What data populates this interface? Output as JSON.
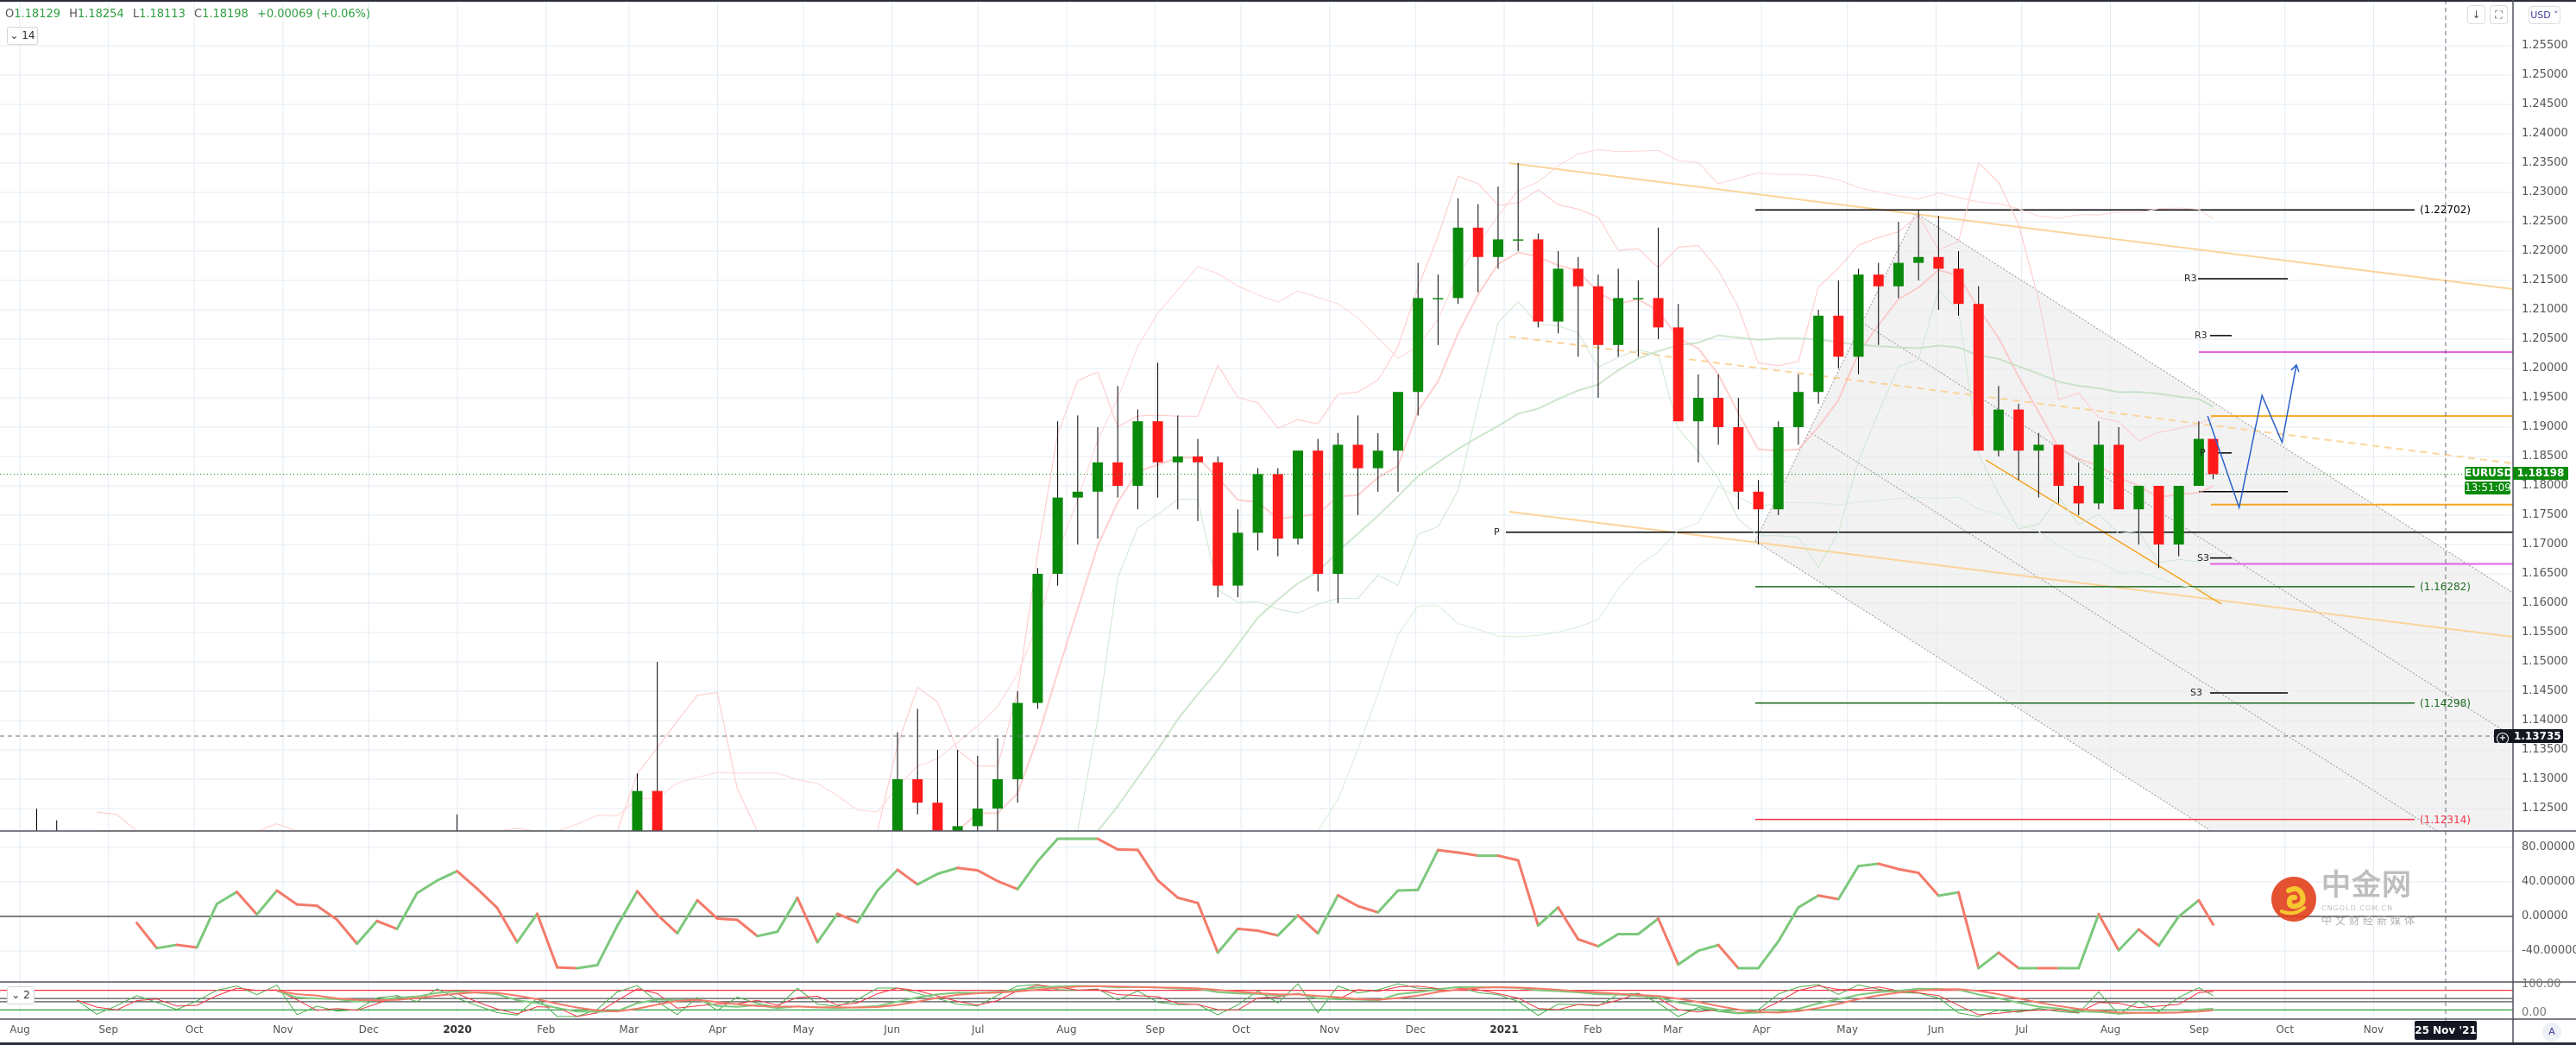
{
  "header": {
    "open_label": "O",
    "open": "1.18129",
    "high_label": "H",
    "high": "1.18254",
    "low_label": "L",
    "low": "1.18113",
    "close_label": "C",
    "close": "1.18198",
    "change": "+0.00069 (+0.06%)"
  },
  "pane_controls": {
    "main_collapse": "14",
    "lower_collapse": "2"
  },
  "toolbar": {
    "currency": "USD",
    "scroll_icon": "arrow-down-icon",
    "fullscreen_icon": "fullscreen-icon",
    "auto_scale": "A"
  },
  "price_axis": {
    "ticks": [
      "1.25500",
      "1.25000",
      "1.24500",
      "1.24000",
      "1.23500",
      "1.23000",
      "1.22500",
      "1.22000",
      "1.21500",
      "1.21000",
      "1.20500",
      "1.20000",
      "1.19500",
      "1.19000",
      "1.18500",
      "1.18000",
      "1.17500",
      "1.17000",
      "1.16500",
      "1.16000",
      "1.15500",
      "1.15000",
      "1.14500",
      "1.14000",
      "1.13500",
      "1.13000",
      "1.12500"
    ]
  },
  "symbol_label": "EURUSD",
  "last_price": "1.18198",
  "countdown": "13:51:09",
  "crosshair": {
    "price": "1.13735",
    "date": "25 Nov '21"
  },
  "rsi_axis": [
    "80.00000",
    "40.00000",
    "0.00000",
    "-40.00000"
  ],
  "stoch_axis": [
    "100.00",
    "0.00"
  ],
  "time_axis": [
    {
      "label": "Aug",
      "date": "2019-08-01"
    },
    {
      "label": "Sep",
      "date": "2019-09-01"
    },
    {
      "label": "Oct",
      "date": "2019-10-01"
    },
    {
      "label": "Nov",
      "date": "2019-11-01"
    },
    {
      "label": "Dec",
      "date": "2019-12-01"
    },
    {
      "label": "2020",
      "date": "2020-01-01"
    },
    {
      "label": "Feb",
      "date": "2020-02-01"
    },
    {
      "label": "Mar",
      "date": "2020-03-01"
    },
    {
      "label": "Apr",
      "date": "2020-04-01"
    },
    {
      "label": "May",
      "date": "2020-05-01"
    },
    {
      "label": "Jun",
      "date": "2020-06-01"
    },
    {
      "label": "Jul",
      "date": "2020-07-01"
    },
    {
      "label": "Aug",
      "date": "2020-08-01"
    },
    {
      "label": "Sep",
      "date": "2020-09-01"
    },
    {
      "label": "Oct",
      "date": "2020-10-01"
    },
    {
      "label": "Nov",
      "date": "2020-11-01"
    },
    {
      "label": "Dec",
      "date": "2020-12-01"
    },
    {
      "label": "2021",
      "date": "2021-01-01"
    },
    {
      "label": "Feb",
      "date": "2021-02-01"
    },
    {
      "label": "Mar",
      "date": "2021-03-01"
    },
    {
      "label": "Apr",
      "date": "2021-04-01"
    },
    {
      "label": "May",
      "date": "2021-05-01"
    },
    {
      "label": "Jun",
      "date": "2021-06-01"
    },
    {
      "label": "Jul",
      "date": "2021-07-01"
    },
    {
      "label": "Aug",
      "date": "2021-08-01"
    },
    {
      "label": "Sep",
      "date": "2021-09-01"
    },
    {
      "label": "Oct",
      "date": "2021-10-01"
    },
    {
      "label": "Nov",
      "date": "2021-11-01"
    }
  ],
  "levels": [
    {
      "label": "(1.22702)",
      "price": 1.22702,
      "color": "#000000"
    },
    {
      "label": "(1.16282)",
      "price": 1.16282,
      "color": "#1e6b1e"
    },
    {
      "label": "(1.14298)",
      "price": 1.14298,
      "color": "#1e6b1e"
    },
    {
      "label": "(1.12314)",
      "price": 1.12314,
      "color": "#f23645"
    }
  ],
  "pivots": [
    {
      "label": "R3",
      "price": 1.2153
    },
    {
      "label": "R3",
      "price": 1.2056
    },
    {
      "label": "P",
      "price": 1.1856
    },
    {
      "label": "P",
      "price": 1.1721
    },
    {
      "label": "S3",
      "price": 1.1677
    },
    {
      "label": "S3",
      "price": 1.1447
    }
  ],
  "colors": {
    "up": "#0a8a0a",
    "down": "#ff1a1a",
    "magenta": "#e060e0",
    "orange": "#f5a623",
    "projection": "#2a62c8",
    "grid": "#e3ebf3"
  },
  "watermark": {
    "brand": "中金网",
    "url": "CNGOLD.COM.CN",
    "tagline": "中文财经新媒体"
  },
  "chart_data": {
    "type": "candlestick",
    "symbol": "EURUSD",
    "ylim": [
      1.121,
      1.261
    ],
    "ohlc_weekly": [
      [
        "2019-08-02",
        1.108,
        1.112,
        1.103,
        1.111
      ],
      [
        "2019-08-09",
        1.111,
        1.125,
        1.108,
        1.12
      ],
      [
        "2019-08-16",
        1.12,
        1.123,
        1.108,
        1.109
      ],
      [
        "2019-08-23",
        1.109,
        1.115,
        1.105,
        1.114
      ],
      [
        "2019-08-30",
        1.114,
        1.114,
        1.097,
        1.099
      ],
      [
        "2019-09-06",
        1.099,
        1.108,
        1.093,
        1.103
      ],
      [
        "2019-09-13",
        1.103,
        1.109,
        1.093,
        1.107
      ],
      [
        "2019-09-20",
        1.107,
        1.108,
        1.098,
        1.102
      ],
      [
        "2019-09-27",
        1.102,
        1.102,
        1.09,
        1.094
      ],
      [
        "2019-10-04",
        1.094,
        1.1,
        1.088,
        1.098
      ],
      [
        "2019-10-11",
        1.098,
        1.105,
        1.094,
        1.104
      ],
      [
        "2019-10-18",
        1.104,
        1.117,
        1.102,
        1.115
      ],
      [
        "2019-10-25",
        1.115,
        1.118,
        1.107,
        1.108
      ],
      [
        "2019-11-01",
        1.108,
        1.117,
        1.107,
        1.117
      ],
      [
        "2019-11-08",
        1.117,
        1.117,
        1.101,
        1.102
      ],
      [
        "2019-11-15",
        1.102,
        1.106,
        1.099,
        1.105
      ],
      [
        "2019-11-22",
        1.105,
        1.109,
        1.099,
        1.102
      ],
      [
        "2019-11-29",
        1.102,
        1.103,
        1.098,
        1.102
      ],
      [
        "2019-12-06",
        1.102,
        1.112,
        1.101,
        1.106
      ],
      [
        "2019-12-13",
        1.106,
        1.12,
        1.106,
        1.112
      ],
      [
        "2019-12-20",
        1.112,
        1.115,
        1.106,
        1.108
      ],
      [
        "2019-12-27",
        1.108,
        1.118,
        1.107,
        1.117
      ],
      [
        "2020-01-03",
        1.117,
        1.124,
        1.115,
        1.116
      ],
      [
        "2020-01-10",
        1.116,
        1.117,
        1.108,
        1.112
      ],
      [
        "2020-01-17",
        1.112,
        1.117,
        1.107,
        1.109
      ],
      [
        "2020-01-24",
        1.109,
        1.11,
        1.102,
        1.103
      ],
      [
        "2020-01-31",
        1.103,
        1.11,
        1.099,
        1.109
      ],
      [
        "2020-02-07",
        1.109,
        1.11,
        1.094,
        1.094
      ],
      [
        "2020-02-14",
        1.094,
        1.097,
        1.083,
        1.083
      ],
      [
        "2020-02-21",
        1.083,
        1.085,
        1.078,
        1.085
      ],
      [
        "2020-02-28",
        1.085,
        1.103,
        1.082,
        1.102
      ],
      [
        "2020-03-06",
        1.102,
        1.131,
        1.101,
        1.128
      ],
      [
        "2020-03-13",
        1.128,
        1.15,
        1.105,
        1.111
      ],
      [
        "2020-03-20",
        1.111,
        1.115,
        1.064,
        1.069
      ],
      [
        "2020-03-27",
        1.069,
        1.115,
        1.07,
        1.114
      ],
      [
        "2020-04-03",
        1.103,
        1.104,
        1.077,
        1.08
      ],
      [
        "2020-04-10",
        1.08,
        1.097,
        1.077,
        1.094
      ],
      [
        "2020-04-17",
        1.094,
        1.099,
        1.081,
        1.088
      ],
      [
        "2020-04-24",
        1.088,
        1.09,
        1.073,
        1.082
      ],
      [
        "2020-05-01",
        1.082,
        1.102,
        1.081,
        1.098
      ],
      [
        "2020-05-08",
        1.098,
        1.098,
        1.077,
        1.084
      ],
      [
        "2020-05-15",
        1.084,
        1.09,
        1.077,
        1.082
      ],
      [
        "2020-05-22",
        1.082,
        1.101,
        1.088,
        1.09
      ],
      [
        "2020-05-29",
        1.09,
        1.115,
        1.089,
        1.11
      ],
      [
        "2020-06-05",
        1.11,
        1.138,
        1.11,
        1.13
      ],
      [
        "2020-06-12",
        1.13,
        1.142,
        1.124,
        1.126
      ],
      [
        "2020-06-19",
        1.126,
        1.135,
        1.117,
        1.118
      ],
      [
        "2020-06-26",
        1.118,
        1.135,
        1.117,
        1.122
      ],
      [
        "2020-07-03",
        1.122,
        1.134,
        1.118,
        1.125
      ],
      [
        "2020-07-10",
        1.125,
        1.137,
        1.119,
        1.13
      ],
      [
        "2020-07-17",
        1.13,
        1.145,
        1.126,
        1.143
      ],
      [
        "2020-07-24",
        1.143,
        1.166,
        1.142,
        1.165
      ],
      [
        "2020-07-31",
        1.165,
        1.191,
        1.163,
        1.178
      ],
      [
        "2020-08-07",
        1.178,
        1.192,
        1.17,
        1.179
      ],
      [
        "2020-08-14",
        1.179,
        1.19,
        1.171,
        1.184
      ],
      [
        "2020-08-21",
        1.184,
        1.197,
        1.178,
        1.18
      ],
      [
        "2020-08-28",
        1.18,
        1.193,
        1.176,
        1.191
      ],
      [
        "2020-09-04",
        1.191,
        1.201,
        1.178,
        1.184
      ],
      [
        "2020-09-11",
        1.184,
        1.192,
        1.176,
        1.185
      ],
      [
        "2020-09-18",
        1.185,
        1.188,
        1.174,
        1.184
      ],
      [
        "2020-09-25",
        1.184,
        1.185,
        1.161,
        1.163
      ],
      [
        "2020-10-02",
        1.163,
        1.176,
        1.161,
        1.172
      ],
      [
        "2020-10-09",
        1.172,
        1.183,
        1.169,
        1.182
      ],
      [
        "2020-10-16",
        1.182,
        1.183,
        1.168,
        1.171
      ],
      [
        "2020-10-23",
        1.171,
        1.186,
        1.17,
        1.186
      ],
      [
        "2020-10-30",
        1.186,
        1.188,
        1.162,
        1.165
      ],
      [
        "2020-11-06",
        1.165,
        1.189,
        1.16,
        1.187
      ],
      [
        "2020-11-13",
        1.187,
        1.192,
        1.175,
        1.183
      ],
      [
        "2020-11-20",
        1.183,
        1.189,
        1.179,
        1.186
      ],
      [
        "2020-11-27",
        1.186,
        1.196,
        1.179,
        1.196
      ],
      [
        "2020-12-04",
        1.196,
        1.218,
        1.192,
        1.212
      ],
      [
        "2020-12-11",
        1.212,
        1.216,
        1.204,
        1.212
      ],
      [
        "2020-12-18",
        1.212,
        1.229,
        1.211,
        1.224
      ],
      [
        "2020-12-25",
        1.224,
        1.228,
        1.213,
        1.219
      ],
      [
        "2021-01-01",
        1.219,
        1.231,
        1.217,
        1.222
      ],
      [
        "2021-01-08",
        1.222,
        1.235,
        1.22,
        1.222
      ],
      [
        "2021-01-15",
        1.222,
        1.223,
        1.207,
        1.208
      ],
      [
        "2021-01-22",
        1.208,
        1.22,
        1.206,
        1.217
      ],
      [
        "2021-01-29",
        1.217,
        1.219,
        1.202,
        1.214
      ],
      [
        "2021-02-05",
        1.214,
        1.216,
        1.195,
        1.204
      ],
      [
        "2021-02-12",
        1.204,
        1.217,
        1.202,
        1.212
      ],
      [
        "2021-02-19",
        1.212,
        1.215,
        1.202,
        1.212
      ],
      [
        "2021-02-26",
        1.212,
        1.224,
        1.205,
        1.207
      ],
      [
        "2021-03-05",
        1.207,
        1.211,
        1.191,
        1.191
      ],
      [
        "2021-03-12",
        1.191,
        1.199,
        1.184,
        1.195
      ],
      [
        "2021-03-19",
        1.195,
        1.199,
        1.187,
        1.19
      ],
      [
        "2021-03-26",
        1.19,
        1.195,
        1.176,
        1.179
      ],
      [
        "2021-04-02",
        1.179,
        1.181,
        1.17,
        1.176
      ],
      [
        "2021-04-09",
        1.176,
        1.191,
        1.175,
        1.19
      ],
      [
        "2021-04-16",
        1.19,
        1.199,
        1.187,
        1.196
      ],
      [
        "2021-04-23",
        1.196,
        1.21,
        1.194,
        1.209
      ],
      [
        "2021-04-30",
        1.209,
        1.215,
        1.2,
        1.202
      ],
      [
        "2021-05-07",
        1.202,
        1.217,
        1.199,
        1.216
      ],
      [
        "2021-05-14",
        1.216,
        1.218,
        1.204,
        1.214
      ],
      [
        "2021-05-21",
        1.214,
        1.225,
        1.212,
        1.218
      ],
      [
        "2021-05-28",
        1.218,
        1.227,
        1.215,
        1.219
      ],
      [
        "2021-06-04",
        1.219,
        1.226,
        1.21,
        1.217
      ],
      [
        "2021-06-11",
        1.217,
        1.22,
        1.209,
        1.211
      ],
      [
        "2021-06-18",
        1.211,
        1.214,
        1.186,
        1.186
      ],
      [
        "2021-06-25",
        1.186,
        1.197,
        1.185,
        1.193
      ],
      [
        "2021-07-02",
        1.193,
        1.194,
        1.181,
        1.186
      ],
      [
        "2021-07-09",
        1.186,
        1.189,
        1.178,
        1.187
      ],
      [
        "2021-07-16",
        1.187,
        1.187,
        1.177,
        1.18
      ],
      [
        "2021-07-23",
        1.18,
        1.184,
        1.175,
        1.177
      ],
      [
        "2021-07-30",
        1.177,
        1.191,
        1.176,
        1.187
      ],
      [
        "2021-08-06",
        1.187,
        1.19,
        1.176,
        1.176
      ],
      [
        "2021-08-13",
        1.176,
        1.18,
        1.17,
        1.18
      ],
      [
        "2021-08-20",
        1.18,
        1.18,
        1.166,
        1.17
      ],
      [
        "2021-08-27",
        1.17,
        1.18,
        1.168,
        1.18
      ],
      [
        "2021-09-03",
        1.18,
        1.191,
        1.18,
        1.188
      ],
      [
        "2021-09-08",
        1.188,
        1.188,
        1.18113,
        1.18198
      ]
    ],
    "projection": [
      [
        "2021-09-04",
        1.1919
      ],
      [
        "2021-09-15",
        1.1763
      ],
      [
        "2021-09-23",
        1.1954
      ],
      [
        "2021-09-30",
        1.1874
      ],
      [
        "2021-10-05",
        1.2006
      ]
    ],
    "oscillator_ylim": [
      -60,
      100
    ],
    "stochastic_ylim": [
      0,
      100
    ],
    "grid": true
  }
}
